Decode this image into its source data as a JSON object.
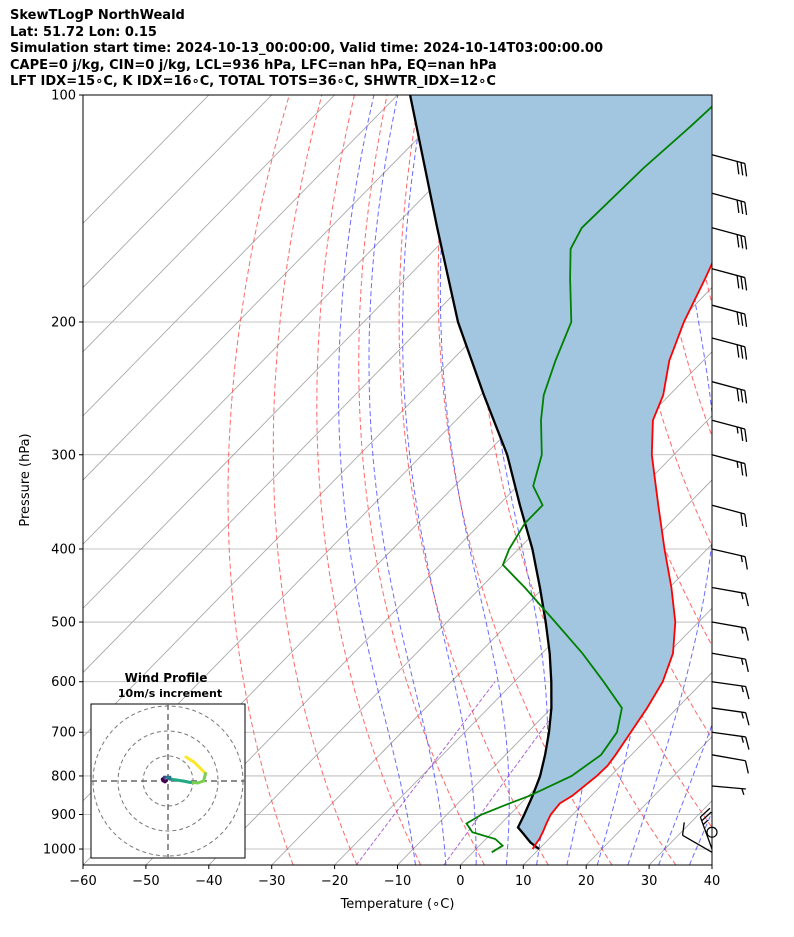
{
  "header": {
    "line1": "SkewTLogP NorthWeald",
    "line2": "Lat: 51.72   Lon: 0.15",
    "line3": "Simulation start time: 2024-10-13_00:00:00, Valid time: 2024-10-14T03:00:00.00",
    "line4": "CAPE=0 j/kg, CIN=0 j/kg, LCL=936 hPa, LFC=nan hPa, EQ=nan hPa",
    "line5": "LFT IDX=15∘C, K IDX=16∘C, TOTAL TOTS=36∘C, SHWTR_IDX=12∘C"
  },
  "chart_data": {
    "type": "line",
    "subtype": "skew-t log-p",
    "xlabel": "Temperature (∘C)",
    "ylabel": "Pressure (hPa)",
    "xlim": [
      -60,
      40
    ],
    "ylim": [
      1050,
      100
    ],
    "y_scale": "log",
    "grid": true,
    "x_ticks": [
      -60,
      -50,
      -40,
      -30,
      -20,
      -10,
      0,
      10,
      20,
      30,
      40
    ],
    "y_ticks": [
      1000,
      900,
      800,
      700,
      600,
      500,
      400,
      300,
      200,
      100
    ],
    "series": [
      {
        "role": "temperature",
        "color": "#ff0000",
        "points": [
          [
            1000,
            9.0
          ],
          [
            990,
            8.8
          ],
          [
            970,
            8.5
          ],
          [
            950,
            8.0
          ],
          [
            925,
            7.2
          ],
          [
            900,
            6.5
          ],
          [
            870,
            6.2
          ],
          [
            850,
            7.0
          ],
          [
            800,
            7.8
          ],
          [
            775,
            7.9
          ],
          [
            750,
            7.5
          ],
          [
            700,
            6.4
          ],
          [
            650,
            5.2
          ],
          [
            600,
            3.6
          ],
          [
            550,
            0.8
          ],
          [
            500,
            -3.7
          ],
          [
            450,
            -9.7
          ],
          [
            400,
            -16.8
          ],
          [
            350,
            -24.6
          ],
          [
            330,
            -28.0
          ],
          [
            300,
            -33.5
          ],
          [
            270,
            -38.7
          ],
          [
            250,
            -41.0
          ],
          [
            225,
            -45.4
          ],
          [
            200,
            -49.1
          ],
          [
            175,
            -52.5
          ],
          [
            150,
            -56.7
          ],
          [
            125,
            -60.8
          ],
          [
            110,
            -63.7
          ],
          [
            100,
            -65.5
          ]
        ]
      },
      {
        "role": "dewpoint",
        "color": "#008000",
        "points": [
          [
            1010,
            3.0
          ],
          [
            990,
            3.7
          ],
          [
            970,
            1.5
          ],
          [
            950,
            -3.2
          ],
          [
            925,
            -5.5
          ],
          [
            900,
            -4.5
          ],
          [
            870,
            -1.8
          ],
          [
            850,
            0.2
          ],
          [
            800,
            3.8
          ],
          [
            750,
            5.2
          ],
          [
            700,
            4.2
          ],
          [
            650,
            1.2
          ],
          [
            600,
            -5.8
          ],
          [
            550,
            -13.6
          ],
          [
            500,
            -22.8
          ],
          [
            450,
            -33.0
          ],
          [
            420,
            -40.0
          ],
          [
            400,
            -41.5
          ],
          [
            370,
            -43.0
          ],
          [
            350,
            -43.0
          ],
          [
            330,
            -47.5
          ],
          [
            300,
            -51.0
          ],
          [
            270,
            -56.5
          ],
          [
            250,
            -60.0
          ],
          [
            225,
            -63.5
          ],
          [
            200,
            -67.0
          ],
          [
            175,
            -74.0
          ],
          [
            160,
            -78.5
          ],
          [
            150,
            -80.0
          ],
          [
            125,
            -79.5
          ],
          [
            110,
            -78.5
          ],
          [
            100,
            -78.0
          ]
        ]
      },
      {
        "role": "parcel",
        "color": "#000000",
        "points": [
          [
            1000,
            10.0
          ],
          [
            980,
            7.6
          ],
          [
            950,
            4.7
          ],
          [
            936,
            3.3
          ],
          [
            900,
            2.3
          ],
          [
            850,
            0.7
          ],
          [
            800,
            -1.2
          ],
          [
            750,
            -3.7
          ],
          [
            700,
            -6.6
          ],
          [
            650,
            -10.0
          ],
          [
            600,
            -14.1
          ],
          [
            550,
            -18.8
          ],
          [
            500,
            -24.3
          ],
          [
            450,
            -30.6
          ],
          [
            400,
            -37.8
          ],
          [
            350,
            -46.6
          ],
          [
            300,
            -56.5
          ],
          [
            250,
            -69.5
          ],
          [
            200,
            -85.0
          ],
          [
            150,
            -103.0
          ],
          [
            100,
            -128.0
          ]
        ]
      }
    ],
    "lcl_hpa": 936,
    "wind_barbs": [
      {
        "p": 1010,
        "spd": 10,
        "dir": 120
      },
      {
        "p": 1000,
        "spd": 25,
        "dir": 160
      },
      {
        "p": 950,
        "spd": 0,
        "dir": 0
      },
      {
        "p": 825,
        "spd": 5,
        "dir": 275
      },
      {
        "p": 750,
        "spd": 10,
        "dir": 280
      },
      {
        "p": 700,
        "spd": 15,
        "dir": 278
      },
      {
        "p": 650,
        "spd": 15,
        "dir": 278
      },
      {
        "p": 600,
        "spd": 15,
        "dir": 278
      },
      {
        "p": 550,
        "spd": 15,
        "dir": 280
      },
      {
        "p": 500,
        "spd": 15,
        "dir": 280
      },
      {
        "p": 450,
        "spd": 15,
        "dir": 280
      },
      {
        "p": 400,
        "spd": 15,
        "dir": 283
      },
      {
        "p": 350,
        "spd": 20,
        "dir": 285
      },
      {
        "p": 300,
        "spd": 25,
        "dir": 285
      },
      {
        "p": 270,
        "spd": 25,
        "dir": 285
      },
      {
        "p": 240,
        "spd": 30,
        "dir": 285
      },
      {
        "p": 210,
        "spd": 30,
        "dir": 285
      },
      {
        "p": 190,
        "spd": 30,
        "dir": 285
      },
      {
        "p": 170,
        "spd": 30,
        "dir": 285
      },
      {
        "p": 150,
        "spd": 30,
        "dir": 285
      },
      {
        "p": 135,
        "spd": 30,
        "dir": 285
      },
      {
        "p": 120,
        "spd": 30,
        "dir": 285
      }
    ],
    "hodograph": {
      "title": "Wind Profile",
      "subtitle": "10m/s increment",
      "ring_increment": 10,
      "points": [
        [
          4.8,
          6.4
        ],
        [
          7.0,
          5.0
        ],
        [
          9.0,
          3.0
        ],
        [
          10.0,
          2.0
        ],
        [
          9.5,
          0.0
        ],
        [
          8.0,
          -0.5
        ],
        [
          6.0,
          -0.4
        ],
        [
          4.0,
          0.0
        ],
        [
          2.0,
          0.3
        ],
        [
          0.5,
          0.5
        ],
        [
          0.5,
          1.0
        ],
        [
          0.0,
          1.0
        ],
        [
          -1.0,
          1.0
        ],
        [
          -1.3,
          0.6
        ],
        [
          -1.0,
          0.2
        ],
        [
          -1.5,
          0.5
        ],
        [
          -1.2,
          0.0
        ],
        [
          -0.8,
          -0.2
        ],
        [
          -0.4,
          0.1
        ]
      ]
    }
  }
}
